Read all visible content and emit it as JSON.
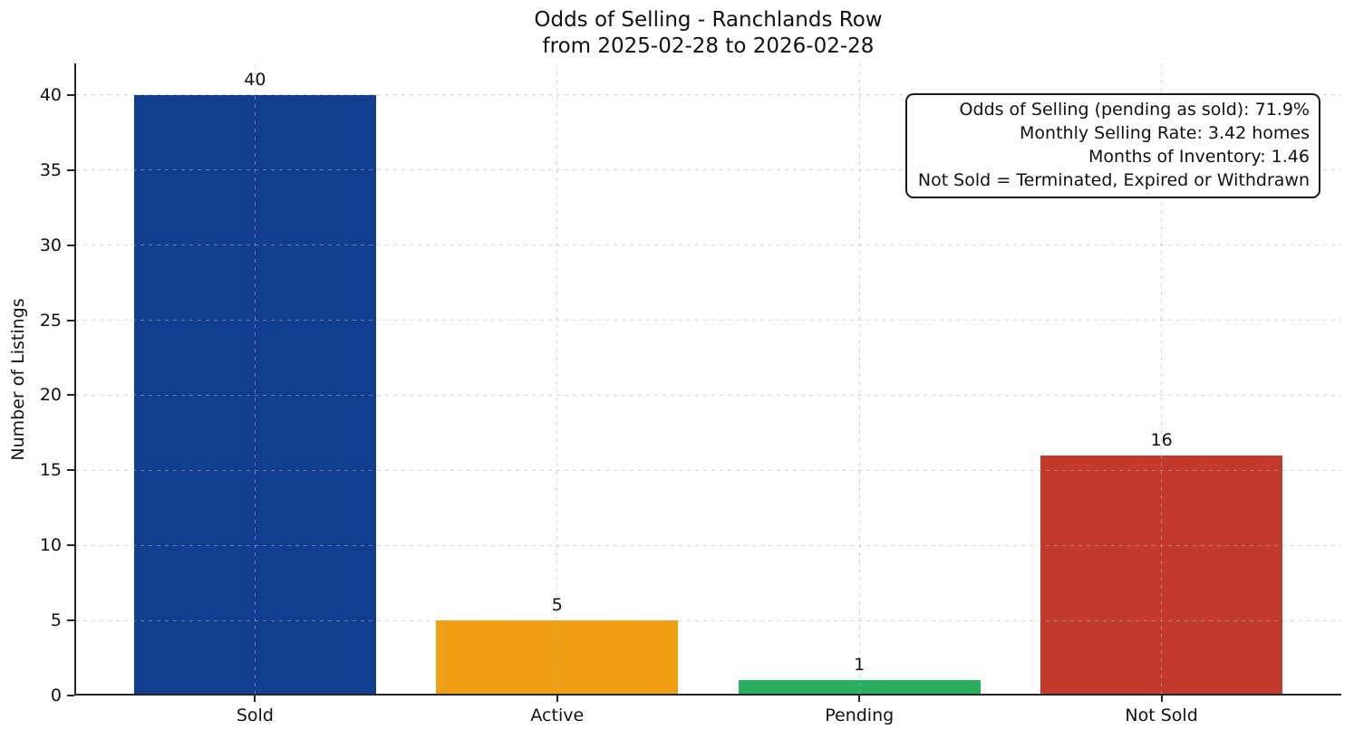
{
  "chart_data": {
    "type": "bar",
    "title": "Odds of Selling - Ranchlands Row",
    "subtitle": "from 2025-02-28 to 2026-02-28",
    "categories": [
      "Sold",
      "Active",
      "Pending",
      "Not Sold"
    ],
    "values": [
      40,
      5,
      1,
      16
    ],
    "value_labels": [
      "40",
      "5",
      "1",
      "16"
    ],
    "bar_colors": [
      "#113e8f",
      "#f0a015",
      "#2aae60",
      "#c23a2b"
    ],
    "ylabel": "Number of Listings",
    "xlabel": "",
    "yticks": [
      0,
      5,
      10,
      15,
      20,
      25,
      30,
      35,
      40
    ],
    "ylim": [
      0,
      42.1
    ],
    "grid": {
      "style": "dashed",
      "color": "#b0b0b0",
      "horizontal": true,
      "vertical": true
    },
    "axis_color": "#262626",
    "legend": "none",
    "annotation": {
      "lines": [
        "Odds of Selling (pending as sold): 71.9%",
        "Monthly Selling Rate: 3.42 homes",
        "Months of Inventory: 1.46",
        "Not Sold = Terminated, Expired or Withdrawn"
      ],
      "stats": {
        "odds_of_selling_pending_as_sold_pct": 71.9,
        "monthly_selling_rate_homes": 3.42,
        "months_of_inventory": 1.46
      }
    }
  }
}
